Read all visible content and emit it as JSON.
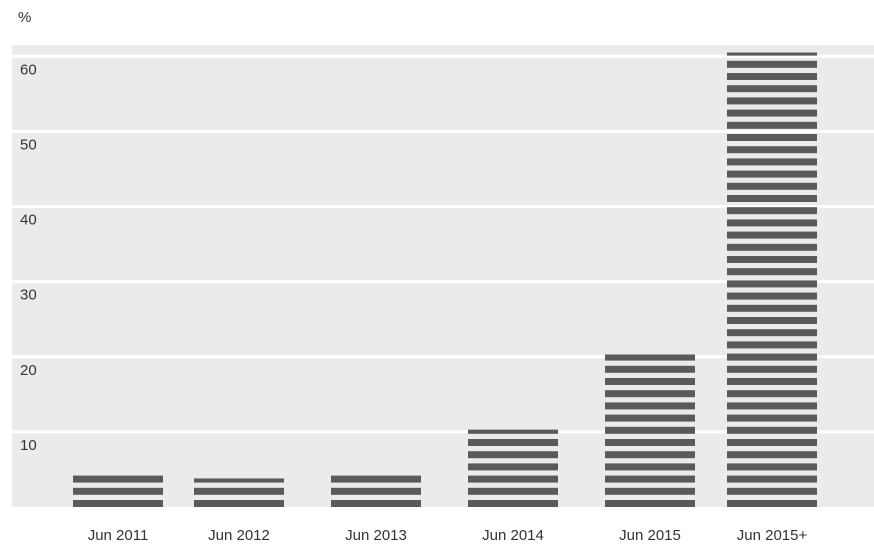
{
  "chart_data": {
    "type": "bar",
    "unit_label": "%",
    "categories": [
      "Jun 2011",
      "Jun 2012",
      "Jun 2013",
      "Jun 2014",
      "Jun 2015",
      "Jun 2015+"
    ],
    "values": [
      4.5,
      3.8,
      4.5,
      10.3,
      20.3,
      60.5
    ],
    "ylim": [
      0,
      61.5
    ],
    "yticks": [
      "10",
      "20",
      "30",
      "40",
      "50",
      "60"
    ],
    "grid": true,
    "colors": {
      "plot_background": "#ebebed",
      "bar": "#5a5a5c",
      "gridline": "#ffffff",
      "text": "#333333"
    }
  }
}
